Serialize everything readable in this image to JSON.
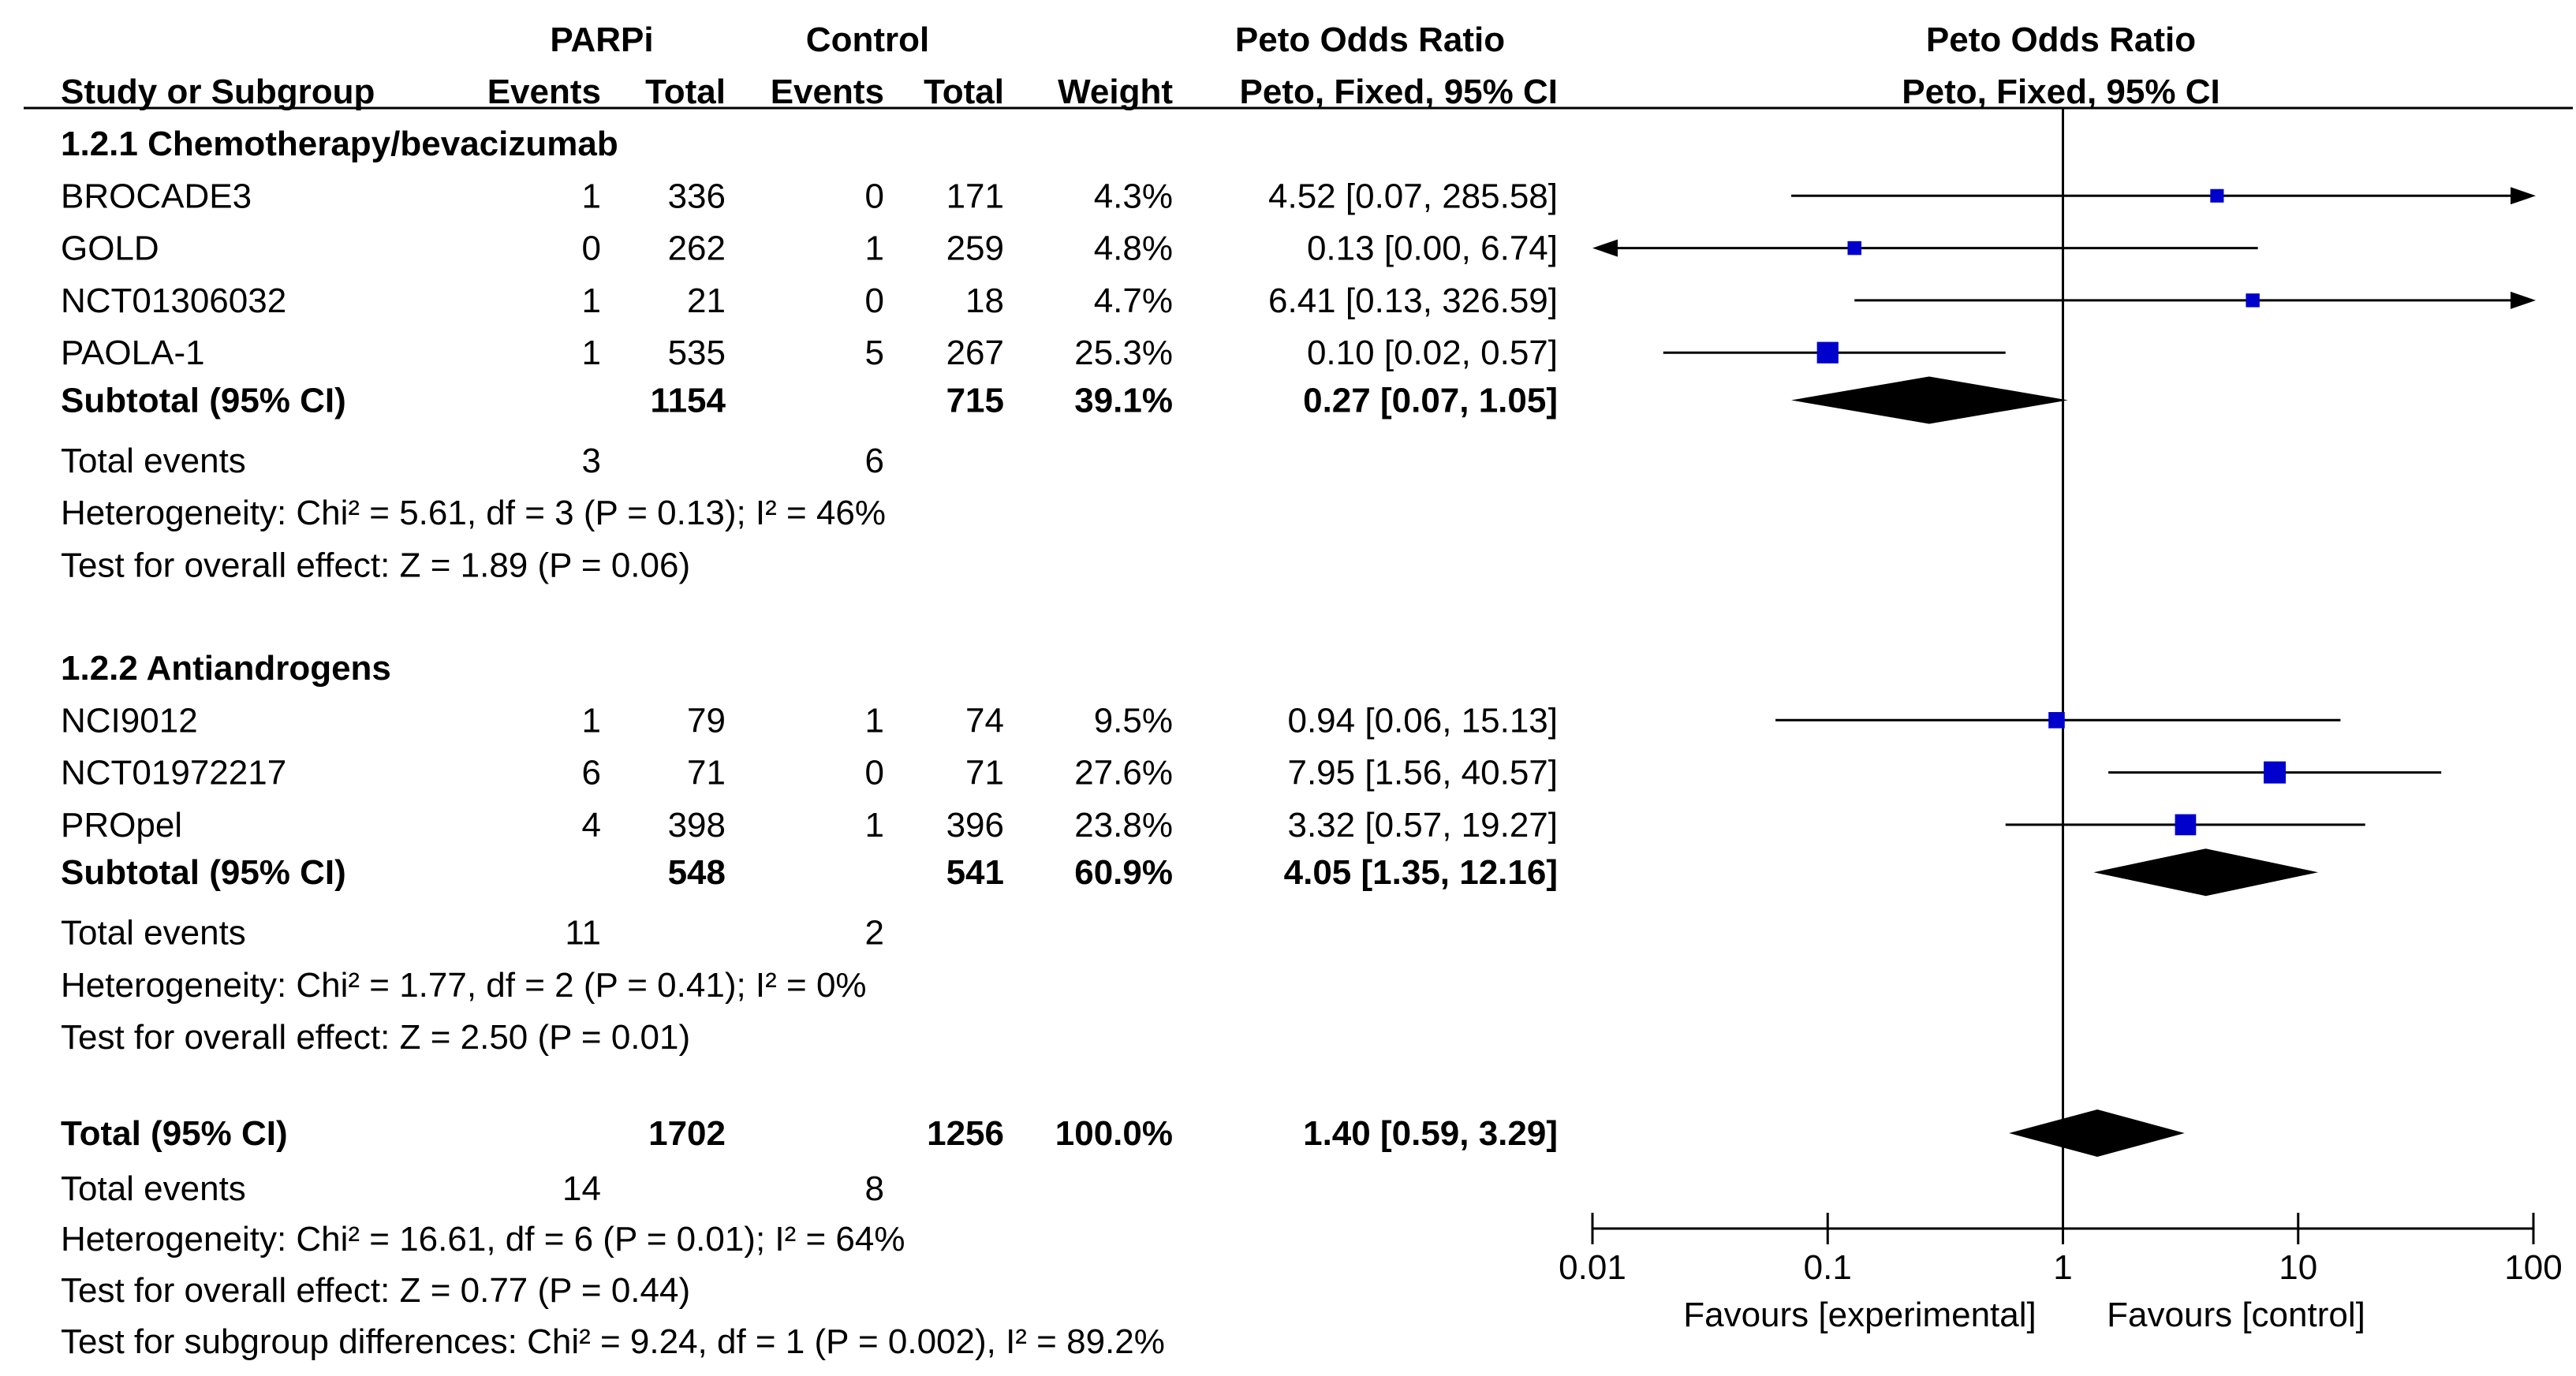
{
  "chart_data": {
    "type": "forest",
    "group_headers": {
      "experimental": "PARPi",
      "control": "Control",
      "or_text": "Peto Odds Ratio",
      "or_plot": "Peto Odds Ratio"
    },
    "column_headers": {
      "study": "Study or Subgroup",
      "exp_events": "Events",
      "exp_total": "Total",
      "ctl_events": "Events",
      "ctl_total": "Total",
      "weight": "Weight",
      "ci_text": "Peto, Fixed, 95% CI",
      "ci_plot": "Peto, Fixed, 95% CI"
    },
    "subgroups": [
      {
        "title": "1.2.1 Chemotherapy/bevacizumab",
        "studies": [
          {
            "name": "BROCADE3",
            "exp_events": "1",
            "exp_total": "336",
            "ctl_events": "0",
            "ctl_total": "171",
            "weight": "4.3%",
            "ci_label": "4.52 [0.07, 285.58]",
            "or": 4.52,
            "lo": 0.07,
            "hi": 285.58,
            "w": 4.3
          },
          {
            "name": "GOLD",
            "exp_events": "0",
            "exp_total": "262",
            "ctl_events": "1",
            "ctl_total": "259",
            "weight": "4.8%",
            "ci_label": "0.13 [0.00, 6.74]",
            "or": 0.13,
            "lo": 0.0,
            "hi": 6.74,
            "w": 4.8
          },
          {
            "name": "NCT01306032",
            "exp_events": "1",
            "exp_total": "21",
            "ctl_events": "0",
            "ctl_total": "18",
            "weight": "4.7%",
            "ci_label": "6.41 [0.13, 326.59]",
            "or": 6.41,
            "lo": 0.13,
            "hi": 326.59,
            "w": 4.7
          },
          {
            "name": "PAOLA-1",
            "exp_events": "1",
            "exp_total": "535",
            "ctl_events": "5",
            "ctl_total": "267",
            "weight": "25.3%",
            "ci_label": "0.10 [0.02, 0.57]",
            "or": 0.1,
            "lo": 0.02,
            "hi": 0.57,
            "w": 25.3
          }
        ],
        "subtotal": {
          "label": "Subtotal (95% CI)",
          "exp_total": "1154",
          "ctl_total": "715",
          "weight": "39.1%",
          "ci_label": "0.27 [0.07, 1.05]",
          "or": 0.27,
          "lo": 0.07,
          "hi": 1.05
        },
        "total_events": {
          "label": "Total events",
          "exp": "3",
          "ctl": "6"
        },
        "heterogeneity": "Heterogeneity: Chi² = 5.61, df = 3 (P = 0.13); I² = 46%",
        "overall_effect": "Test for overall effect: Z = 1.89 (P = 0.06)"
      },
      {
        "title": "1.2.2 Antiandrogens",
        "studies": [
          {
            "name": "NCI9012",
            "exp_events": "1",
            "exp_total": "79",
            "ctl_events": "1",
            "ctl_total": "74",
            "weight": "9.5%",
            "ci_label": "0.94 [0.06, 15.13]",
            "or": 0.94,
            "lo": 0.06,
            "hi": 15.13,
            "w": 9.5
          },
          {
            "name": "NCT01972217",
            "exp_events": "6",
            "exp_total": "71",
            "ctl_events": "0",
            "ctl_total": "71",
            "weight": "27.6%",
            "ci_label": "7.95 [1.56, 40.57]",
            "or": 7.95,
            "lo": 1.56,
            "hi": 40.57,
            "w": 27.6
          },
          {
            "name": "PROpel",
            "exp_events": "4",
            "exp_total": "398",
            "ctl_events": "1",
            "ctl_total": "396",
            "weight": "23.8%",
            "ci_label": "3.32 [0.57, 19.27]",
            "or": 3.32,
            "lo": 0.57,
            "hi": 19.27,
            "w": 23.8
          }
        ],
        "subtotal": {
          "label": "Subtotal (95% CI)",
          "exp_total": "548",
          "ctl_total": "541",
          "weight": "60.9%",
          "ci_label": "4.05 [1.35, 12.16]",
          "or": 4.05,
          "lo": 1.35,
          "hi": 12.16
        },
        "total_events": {
          "label": "Total events",
          "exp": "11",
          "ctl": "2"
        },
        "heterogeneity": "Heterogeneity: Chi² = 1.77, df = 2 (P = 0.41); I² = 0%",
        "overall_effect": "Test for overall effect: Z = 2.50 (P = 0.01)"
      }
    ],
    "overall": {
      "label": "Total (95% CI)",
      "exp_total": "1702",
      "ctl_total": "1256",
      "weight": "100.0%",
      "ci_label": "1.40 [0.59, 3.29]",
      "or": 1.4,
      "lo": 0.59,
      "hi": 3.29,
      "total_events": {
        "label": "Total events",
        "exp": "14",
        "ctl": "8"
      },
      "heterogeneity": "Heterogeneity: Chi² = 16.61, df = 6 (P = 0.01); I² = 64%",
      "overall_effect": "Test for overall effect: Z = 0.77 (P = 0.44)",
      "subgroup_diff": "Test for subgroup differences: Chi² = 9.24, df = 1 (P = 0.002), I² = 89.2%"
    },
    "axis": {
      "scale": "log",
      "xlim": [
        0.01,
        100
      ],
      "ticks": [
        0.01,
        0.1,
        1,
        10,
        100
      ],
      "tick_labels": [
        "0.01",
        "0.1",
        "1",
        "10",
        "100"
      ],
      "null_line": 1,
      "favours_left": "Favours [experimental]",
      "favours_right": "Favours [control]"
    },
    "colors": {
      "marker": "#0000cc",
      "diamond": "#000000",
      "line": "#000000"
    }
  }
}
